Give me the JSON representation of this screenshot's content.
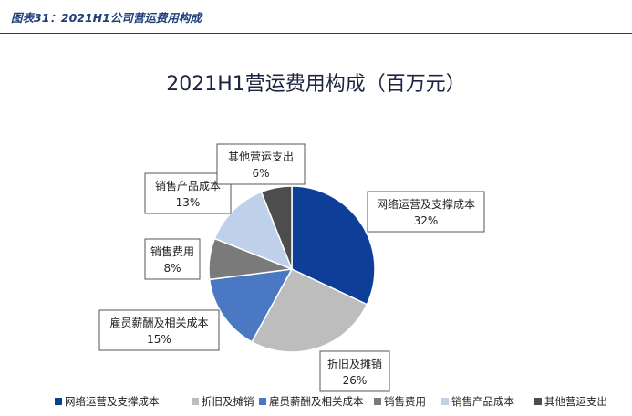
{
  "figure_caption": "图表31：2021H1公司营运费用构成",
  "colors": {
    "header_accent": "#1f3f7a",
    "slice_1": "#0d3f99",
    "slice_2": "#bdbdbd",
    "slice_3": "#4a78c2",
    "slice_4": "#7a7a7a",
    "slice_5": "#bfd0ea",
    "slice_6": "#4d4d4d"
  },
  "chart_data": {
    "type": "pie",
    "title": "2021H1营运费用构成（百万元）",
    "slices": [
      {
        "name": "网络运营及支撑成本",
        "percent_label": "32%",
        "value": 32,
        "color": "#0d3f99"
      },
      {
        "name": "折旧及摊销",
        "percent_label": "26%",
        "value": 26,
        "color": "#bdbdbd"
      },
      {
        "name": "雇员薪酬及相关成本",
        "percent_label": "15%",
        "value": 15,
        "color": "#4a78c2"
      },
      {
        "name": "销售费用",
        "percent_label": "8%",
        "value": 8,
        "color": "#7a7a7a"
      },
      {
        "name": "销售产品成本",
        "percent_label": "13%",
        "value": 13,
        "color": "#bfd0ea"
      },
      {
        "name": "其他营运支出",
        "percent_label": "6%",
        "value": 6,
        "color": "#4d4d4d"
      }
    ],
    "legend_position": "bottom"
  }
}
